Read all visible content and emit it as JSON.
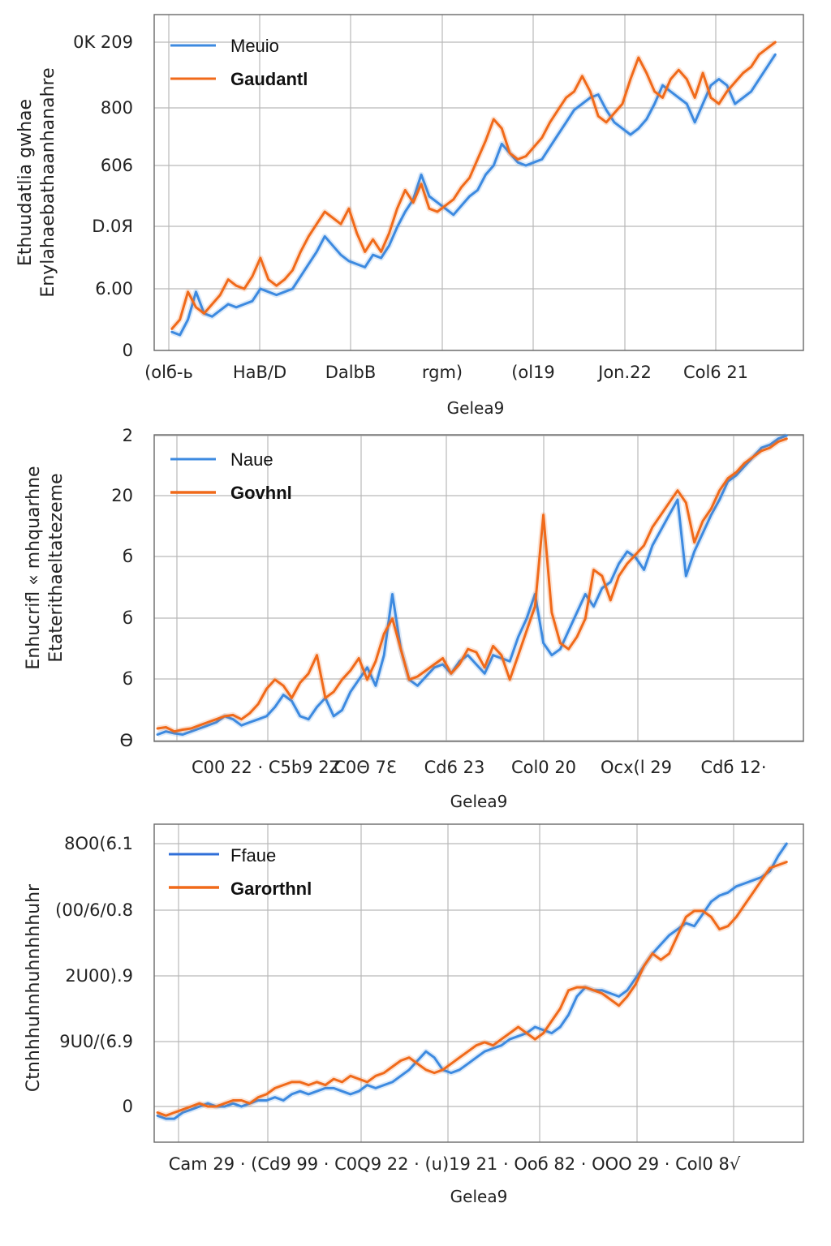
{
  "chart_data": [
    {
      "type": "line",
      "ylabel": [
        "Ethuudatlia gwhae",
        "Enylahaebathaanhanahre"
      ],
      "xlabel": "Gelea9",
      "x_tick_labels": [
        "(olб-ь",
        "HaB/D",
        "DalbB",
        "rgm)",
        "(ol19",
        "Jon.22",
        "Col6 21"
      ],
      "y_tick_labels": [
        "0",
        "6.00",
        "D.0Я",
        "606",
        "800",
        "0K 209"
      ],
      "x": [
        0,
        1,
        2,
        3,
        4,
        5,
        6,
        7,
        8,
        9,
        10,
        11,
        12,
        13,
        14,
        15,
        16,
        17,
        18,
        19,
        20,
        21,
        22,
        23,
        24,
        25,
        26,
        27,
        28,
        29,
        30,
        31,
        32,
        33,
        34,
        35,
        36,
        37,
        38,
        39,
        40,
        41,
        42,
        43,
        44,
        45,
        46,
        47,
        48,
        49,
        50,
        51,
        52,
        53,
        54,
        55,
        56,
        57,
        58,
        59,
        60,
        61,
        62,
        63,
        64,
        65,
        66,
        67,
        68,
        69,
        70,
        71,
        72,
        73,
        74,
        75
      ],
      "xlim": [
        -2.2,
        78.5
      ],
      "ylim": [
        0,
        5
      ],
      "legend": "top-left",
      "grid": true,
      "series": [
        {
          "name": "Meuio",
          "color": "#3d8ae0",
          "values": [
            0.3,
            0.25,
            0.5,
            0.95,
            0.6,
            0.55,
            0.65,
            0.75,
            0.7,
            0.75,
            0.8,
            1.0,
            0.95,
            0.9,
            0.95,
            1.0,
            1.2,
            1.4,
            1.6,
            1.85,
            1.7,
            1.55,
            1.45,
            1.4,
            1.35,
            1.55,
            1.5,
            1.7,
            2.0,
            2.25,
            2.45,
            2.85,
            2.5,
            2.4,
            2.3,
            2.2,
            2.35,
            2.5,
            2.6,
            2.85,
            3.0,
            3.35,
            3.2,
            3.05,
            3.0,
            3.05,
            3.1,
            3.3,
            3.5,
            3.7,
            3.9,
            4.0,
            4.1,
            4.15,
            3.9,
            3.7,
            3.6,
            3.5,
            3.6,
            3.75,
            4.0,
            4.3,
            4.2,
            4.1,
            4.0,
            3.7,
            4.0,
            4.3,
            4.4,
            4.3,
            4.0,
            4.1,
            4.2,
            4.4,
            4.6,
            4.8
          ]
        },
        {
          "name": "Gaudantl",
          "color": "#f06a1a",
          "values": [
            0.35,
            0.5,
            0.95,
            0.7,
            0.6,
            0.75,
            0.9,
            1.15,
            1.05,
            1.0,
            1.2,
            1.5,
            1.15,
            1.05,
            1.15,
            1.3,
            1.6,
            1.85,
            2.05,
            2.25,
            2.15,
            2.05,
            2.3,
            1.9,
            1.6,
            1.8,
            1.6,
            1.9,
            2.3,
            2.6,
            2.4,
            2.7,
            2.3,
            2.25,
            2.35,
            2.45,
            2.65,
            2.8,
            3.1,
            3.4,
            3.75,
            3.6,
            3.2,
            3.1,
            3.15,
            3.3,
            3.45,
            3.7,
            3.9,
            4.1,
            4.2,
            4.45,
            4.2,
            3.8,
            3.7,
            3.85,
            4.0,
            4.4,
            4.75,
            4.5,
            4.2,
            4.1,
            4.4,
            4.55,
            4.4,
            4.1,
            4.5,
            4.1,
            4.0,
            4.2,
            4.35,
            4.5,
            4.6,
            4.8,
            4.9,
            5.0
          ]
        }
      ]
    },
    {
      "type": "line",
      "ylabel": [
        "Enhucrifl « mhquarhne",
        "Etaterithaeltatezeme"
      ],
      "xlabel": "Gelea9",
      "x_tick_labels": [
        "C00 22 · C5b9 2Z",
        "C0Θ 7Ɛ",
        "Cd6 23",
        "Col0 20",
        "Ocx(l 29",
        "Cdб 12·"
      ],
      "y_tick_labels": [
        "Ɵ",
        "б",
        "б",
        "б",
        "20",
        "2"
      ],
      "x": [
        0,
        1,
        2,
        3,
        4,
        5,
        6,
        7,
        8,
        9,
        10,
        11,
        12,
        13,
        14,
        15,
        16,
        17,
        18,
        19,
        20,
        21,
        22,
        23,
        24,
        25,
        26,
        27,
        28,
        29,
        30,
        31,
        32,
        33,
        34,
        35,
        36,
        37,
        38,
        39,
        40,
        41,
        42,
        43,
        44,
        45,
        46,
        47,
        48,
        49,
        50,
        51,
        52,
        53,
        54,
        55,
        56,
        57,
        58,
        59,
        60,
        61,
        62,
        63,
        64,
        65,
        66,
        67,
        68,
        69,
        70,
        71,
        72,
        73,
        74,
        75
      ],
      "xlim": [
        -0.4,
        77.0
      ],
      "ylim": [
        0,
        5
      ],
      "legend": "top-left",
      "grid": true,
      "series": [
        {
          "name": "Naue",
          "color": "#3d8ae0",
          "values": [
            0.1,
            0.15,
            0.12,
            0.1,
            0.15,
            0.2,
            0.25,
            0.3,
            0.4,
            0.35,
            0.25,
            0.3,
            0.35,
            0.4,
            0.55,
            0.75,
            0.65,
            0.4,
            0.35,
            0.55,
            0.7,
            0.4,
            0.5,
            0.8,
            1.0,
            1.2,
            0.9,
            1.4,
            2.4,
            1.5,
            1.0,
            0.9,
            1.05,
            1.2,
            1.25,
            1.1,
            1.3,
            1.4,
            1.25,
            1.1,
            1.4,
            1.35,
            1.3,
            1.7,
            2.0,
            2.4,
            1.6,
            1.4,
            1.5,
            1.8,
            2.1,
            2.4,
            2.2,
            2.5,
            2.6,
            2.9,
            3.1,
            3.0,
            2.8,
            3.2,
            3.45,
            3.7,
            3.95,
            2.7,
            3.1,
            3.4,
            3.7,
            3.95,
            4.25,
            4.35,
            4.5,
            4.65,
            4.8,
            4.85,
            4.95,
            5.0
          ]
        },
        {
          "name": "Govhnl",
          "color": "#f06a1a",
          "values": [
            0.2,
            0.22,
            0.15,
            0.18,
            0.2,
            0.25,
            0.3,
            0.35,
            0.4,
            0.42,
            0.35,
            0.45,
            0.6,
            0.85,
            1.0,
            0.9,
            0.7,
            0.95,
            1.1,
            1.4,
            0.7,
            0.8,
            1.0,
            1.15,
            1.35,
            1.0,
            1.3,
            1.75,
            2.0,
            1.5,
            1.0,
            1.05,
            1.15,
            1.25,
            1.35,
            1.1,
            1.25,
            1.5,
            1.45,
            1.2,
            1.55,
            1.4,
            1.0,
            1.4,
            1.8,
            2.2,
            3.7,
            2.1,
            1.6,
            1.5,
            1.7,
            2.0,
            2.8,
            2.7,
            2.3,
            2.7,
            2.9,
            3.05,
            3.2,
            3.5,
            3.7,
            3.9,
            4.1,
            3.9,
            3.25,
            3.6,
            3.8,
            4.1,
            4.3,
            4.4,
            4.55,
            4.65,
            4.75,
            4.8,
            4.9,
            4.95
          ]
        }
      ]
    },
    {
      "type": "line",
      "ylabel": [
        "Ctnhhhuhnhuhnhhhuhr"
      ],
      "xlabel": "Gelea9",
      "x_tick_labels": [
        "Cam 29 · (Cd9 99 · C0Q9 22 · (u)19 21 · Ooб 82 · OOO 29 · Col0 8√"
      ],
      "y_tick_labels": [
        "0",
        "9U0/(6.9",
        "2U00).9",
        "(00/6/0.8",
        "8O0(6.1"
      ],
      "x": [
        0,
        1,
        2,
        3,
        4,
        5,
        6,
        7,
        8,
        9,
        10,
        11,
        12,
        13,
        14,
        15,
        16,
        17,
        18,
        19,
        20,
        21,
        22,
        23,
        24,
        25,
        26,
        27,
        28,
        29,
        30,
        31,
        32,
        33,
        34,
        35,
        36,
        37,
        38,
        39,
        40,
        41,
        42,
        43,
        44,
        45,
        46,
        47,
        48,
        49,
        50,
        51,
        52,
        53,
        54,
        55,
        56,
        57,
        58,
        59,
        60,
        61,
        62,
        63,
        64,
        65,
        66,
        67,
        68,
        69,
        70,
        71,
        72,
        73,
        74,
        75
      ],
      "xlim": [
        -0.4,
        77.0
      ],
      "ylim": [
        0,
        4.3
      ],
      "legend": "top-left",
      "grid": true,
      "series": [
        {
          "name": "Ffaue",
          "color": "#3d8ae0",
          "values": [
            -0.15,
            -0.2,
            -0.2,
            -0.1,
            -0.05,
            0.0,
            0.05,
            0.0,
            0.0,
            0.05,
            0.0,
            0.05,
            0.1,
            0.1,
            0.15,
            0.1,
            0.2,
            0.25,
            0.2,
            0.25,
            0.3,
            0.3,
            0.25,
            0.2,
            0.25,
            0.35,
            0.3,
            0.35,
            0.4,
            0.5,
            0.6,
            0.75,
            0.9,
            0.8,
            0.6,
            0.55,
            0.6,
            0.7,
            0.8,
            0.9,
            0.95,
            1.0,
            1.1,
            1.15,
            1.2,
            1.3,
            1.25,
            1.2,
            1.3,
            1.5,
            1.8,
            1.95,
            1.9,
            1.9,
            1.85,
            1.8,
            1.9,
            2.1,
            2.3,
            2.5,
            2.65,
            2.8,
            2.9,
            3.0,
            2.95,
            3.15,
            3.35,
            3.45,
            3.5,
            3.6,
            3.65,
            3.7,
            3.75,
            3.85,
            4.1,
            4.3
          ]
        },
        {
          "name": "Garorthnl",
          "color": "#f06a1a",
          "values": [
            -0.1,
            -0.15,
            -0.1,
            -0.05,
            0.0,
            0.05,
            0.0,
            0.0,
            0.05,
            0.1,
            0.1,
            0.05,
            0.15,
            0.2,
            0.3,
            0.35,
            0.4,
            0.4,
            0.35,
            0.4,
            0.35,
            0.45,
            0.4,
            0.5,
            0.45,
            0.4,
            0.5,
            0.55,
            0.65,
            0.75,
            0.8,
            0.7,
            0.6,
            0.55,
            0.6,
            0.7,
            0.8,
            0.9,
            1.0,
            1.05,
            1.0,
            1.1,
            1.2,
            1.3,
            1.2,
            1.1,
            1.2,
            1.4,
            1.6,
            1.9,
            1.95,
            1.95,
            1.9,
            1.85,
            1.75,
            1.65,
            1.8,
            2.0,
            2.3,
            2.5,
            2.4,
            2.5,
            2.8,
            3.1,
            3.2,
            3.2,
            3.1,
            2.9,
            2.95,
            3.1,
            3.3,
            3.5,
            3.7,
            3.9,
            3.95,
            4.0
          ]
        }
      ]
    }
  ]
}
